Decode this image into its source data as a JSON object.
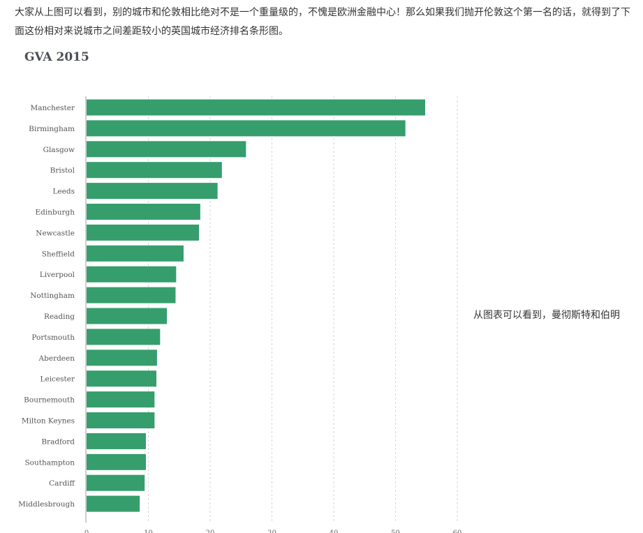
{
  "article": {
    "paragraph": "大家从上图可以看到，别的城市和伦敦相比绝对不是一个重量级的，不愧是欧洲金融中心！那么如果我们抛开伦敦这个第一名的话，就得到了下面这份相对来说城市之间差距较小的英国城市经济排名条形图。",
    "side_text": "从图表可以看到，曼彻斯特和伯明"
  },
  "chart_data": {
    "type": "bar",
    "orientation": "horizontal",
    "title": "GVA 2015",
    "xlabel": "",
    "ylabel": "",
    "categories": [
      "Manchester",
      "Birmingham",
      "Glasgow",
      "Bristol",
      "Leeds",
      "Edinburgh",
      "Newcastle",
      "Sheffield",
      "Liverpool",
      "Nottingham",
      "Reading",
      "Portsmouth",
      "Aberdeen",
      "Leicester",
      "Bournemouth",
      "Milton Keynes",
      "Bradford",
      "Southampton",
      "Cardiff",
      "Middlesbrough"
    ],
    "values": [
      54.8,
      51.6,
      25.8,
      21.9,
      21.2,
      18.4,
      18.2,
      15.7,
      14.5,
      14.4,
      13.0,
      11.9,
      11.4,
      11.3,
      11.0,
      11.0,
      9.6,
      9.6,
      9.4,
      8.6
    ],
    "xlim": [
      0,
      60
    ],
    "xticks": [
      0,
      10,
      20,
      30,
      40,
      50,
      60
    ],
    "grid": true,
    "legend": "none",
    "bar_color": "#359e6c"
  }
}
